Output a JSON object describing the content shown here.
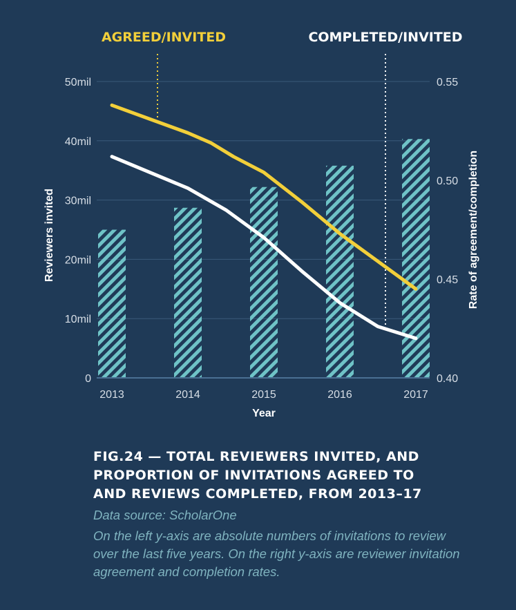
{
  "colors": {
    "background": "#1f3a57",
    "bar_stripe": "#6fc3c7",
    "agreed_line": "#f2cf3a",
    "completed_line": "#ffffff",
    "axis_text": "#d7dee6",
    "grid": "#3a5a7a"
  },
  "chart_data": {
    "type": "bar",
    "categories": [
      "2013",
      "2014",
      "2015",
      "2016",
      "2017"
    ],
    "xlabel": "Year",
    "ylabel": "Reviewers invited",
    "y2label": "Rate of agreement/completion",
    "ylim": [
      0,
      50
    ],
    "y2lim": [
      0.4,
      0.55
    ],
    "yticks": [
      "0",
      "10mil",
      "20mil",
      "30mil",
      "40mil",
      "50mil"
    ],
    "y2ticks": [
      "0.40",
      "0.45",
      "0.50",
      "0.55"
    ],
    "bars": {
      "values": [
        25,
        28.7,
        32.2,
        35.8,
        40.3
      ]
    },
    "lines": [
      {
        "name": "AGREED/INVITED",
        "axis": "right",
        "x": [
          2013.0,
          2013.5,
          2014.0,
          2014.3,
          2014.6,
          2015.0,
          2015.5,
          2016.0,
          2016.5,
          2017.0
        ],
        "y": [
          0.538,
          0.531,
          0.524,
          0.519,
          0.512,
          0.504,
          0.489,
          0.473,
          0.459,
          0.445
        ]
      },
      {
        "name": "COMPLETED/INVITED",
        "axis": "right",
        "x": [
          2013.0,
          2013.5,
          2014.0,
          2014.5,
          2015.0,
          2015.5,
          2016.0,
          2016.5,
          2017.0
        ],
        "y": [
          0.512,
          0.504,
          0.496,
          0.485,
          0.471,
          0.454,
          0.438,
          0.426,
          0.42
        ]
      }
    ],
    "annotations": [
      {
        "label": "AGREED/INVITED",
        "x": 2013.6
      },
      {
        "label": "COMPLETED/INVITED",
        "x": 2016.6
      }
    ],
    "grid": true
  },
  "caption": {
    "title_lines": [
      "FIG.24 — TOTAL REVIEWERS INVITED, AND",
      "PROPORTION OF INVITATIONS AGREED TO",
      "AND REVIEWS COMPLETED, FROM 2013–17"
    ],
    "source": "Data source: ScholarOne",
    "note": "On the left y-axis are absolute numbers of invitations to review over the last five years. On the right y-axis are reviewer invitation agreement and completion rates."
  }
}
